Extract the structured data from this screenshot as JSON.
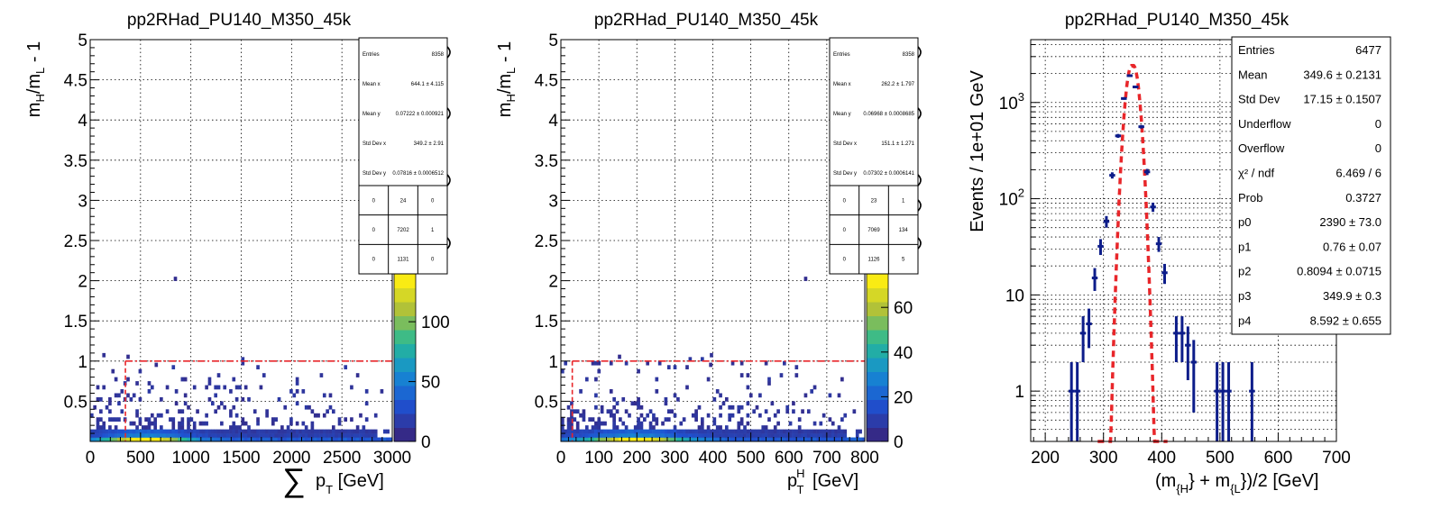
{
  "chart_data": [
    {
      "type": "heatmap",
      "title": "pp2RHad_PU140_M350_45k",
      "xlabel_prefix": "∑",
      "xlabel_main": "p",
      "xlabel_sub": "T",
      "xlabel_unit": " [GeV]",
      "ylabel_main": "m",
      "ylabel_sub1": "H",
      "ylabel_sep": "/m",
      "ylabel_sub2": "L",
      "ylabel_tail": " - 1",
      "xlim": [
        0,
        3000
      ],
      "ylim": [
        0,
        5
      ],
      "xticks": [
        "0",
        "500",
        "1000",
        "1500",
        "2000",
        "2500",
        "3000"
      ],
      "yticks": [
        "0.5",
        "1",
        "1.5",
        "2",
        "2.5",
        "3",
        "3.5",
        "4",
        "4.5",
        "5"
      ],
      "zticks": [
        "0",
        "50",
        "100"
      ],
      "zmax": 140,
      "grid": true,
      "cut_x": 350,
      "cut_y": 1,
      "stats": [
        {
          "label": "Entries",
          "value": "8358"
        },
        {
          "label": "Mean x",
          "value": "644.1 ± 4.115"
        },
        {
          "label": "Mean y",
          "value": "0.07222 ± 0.000921"
        },
        {
          "label": "Std Dev x",
          "value": "349.2 ± 2.91"
        },
        {
          "label": "Std Dev y",
          "value": "0.07816 ± 0.0006512"
        }
      ],
      "quadrants": [
        [
          "0",
          "24",
          "0"
        ],
        [
          "0",
          "7202",
          "1"
        ],
        [
          "0",
          "1131",
          "0"
        ]
      ]
    },
    {
      "type": "heatmap",
      "title": "pp2RHad_PU140_M350_45k",
      "xlabel_prefix": "",
      "xlabel_main": "p",
      "xlabel_sub": "T",
      "xlabel_sup": "H",
      "xlabel_unit": " [GeV]",
      "ylabel_main": "m",
      "ylabel_sub1": "H",
      "ylabel_sep": "/m",
      "ylabel_sub2": "L",
      "ylabel_tail": " - 1",
      "xlim": [
        0,
        800
      ],
      "ylim": [
        0,
        5
      ],
      "xticks": [
        "0",
        "100",
        "200",
        "300",
        "400",
        "500",
        "600",
        "700",
        "800"
      ],
      "yticks": [
        "0.5",
        "1",
        "1.5",
        "2",
        "2.5",
        "3",
        "3.5",
        "4",
        "4.5",
        "5"
      ],
      "zticks": [
        "0",
        "20",
        "40",
        "60"
      ],
      "zmax": 75,
      "grid": true,
      "cut_x": 30,
      "cut_y": 1,
      "stats": [
        {
          "label": "Entries",
          "value": "8358"
        },
        {
          "label": "Mean x",
          "value": "262.2 ± 1.797"
        },
        {
          "label": "Mean y",
          "value": "0.06968 ± 0.0008685"
        },
        {
          "label": "Std Dev x",
          "value": "151.1 ± 1.271"
        },
        {
          "label": "Std Dev y",
          "value": "0.07302 ± 0.0006141"
        }
      ],
      "quadrants": [
        [
          "0",
          "23",
          "1"
        ],
        [
          "0",
          "7069",
          "134"
        ],
        [
          "0",
          "1126",
          "5"
        ]
      ]
    },
    {
      "type": "scatter",
      "title": "pp2RHad_PU140_M350_45k",
      "xlabel": "(m_{H} + m_{L})/2 [GeV]",
      "xlabel_main": "(m",
      "xlabel_sub1": "{H",
      "xlabel_mid": "} + m",
      "xlabel_sub2": "{L",
      "xlabel_tail": "})/2 [GeV]",
      "ylabel": "Events / 1e+01 GeV",
      "xlim": [
        175,
        700
      ],
      "ylim": [
        0.3,
        4500
      ],
      "yscale": "log",
      "xticks": [
        "200",
        "300",
        "400",
        "500",
        "600",
        "700"
      ],
      "ytick_main": [
        "1",
        "10",
        "10",
        "10"
      ],
      "ytick_exp": [
        "",
        "",
        "2",
        "3"
      ],
      "ytick_vals": [
        1,
        10,
        100,
        1000
      ],
      "grid": true,
      "points": [
        {
          "x": 245,
          "y": 1,
          "lo": 0.3,
          "hi": 2
        },
        {
          "x": 255,
          "y": 1,
          "lo": 0.3,
          "hi": 2
        },
        {
          "x": 265,
          "y": 4,
          "lo": 2,
          "hi": 6
        },
        {
          "x": 275,
          "y": 5,
          "lo": 2.8,
          "hi": 7.2
        },
        {
          "x": 285,
          "y": 15,
          "lo": 11,
          "hi": 19
        },
        {
          "x": 295,
          "y": 32,
          "lo": 26,
          "hi": 38
        },
        {
          "x": 305,
          "y": 58,
          "lo": 50,
          "hi": 66
        },
        {
          "x": 315,
          "y": 175,
          "lo": 162,
          "hi": 188
        },
        {
          "x": 325,
          "y": 450,
          "lo": 429,
          "hi": 471
        },
        {
          "x": 335,
          "y": 1100,
          "lo": 1067,
          "hi": 1133
        },
        {
          "x": 345,
          "y": 1900,
          "lo": 1856,
          "hi": 1944
        },
        {
          "x": 355,
          "y": 1450,
          "lo": 1412,
          "hi": 1488
        },
        {
          "x": 365,
          "y": 560,
          "lo": 536,
          "hi": 584
        },
        {
          "x": 375,
          "y": 190,
          "lo": 176,
          "hi": 204
        },
        {
          "x": 385,
          "y": 82,
          "lo": 73,
          "hi": 91
        },
        {
          "x": 395,
          "y": 34,
          "lo": 28,
          "hi": 40
        },
        {
          "x": 405,
          "y": 17,
          "lo": 13,
          "hi": 21
        },
        {
          "x": 425,
          "y": 4,
          "lo": 2,
          "hi": 6
        },
        {
          "x": 435,
          "y": 4,
          "lo": 2,
          "hi": 6
        },
        {
          "x": 445,
          "y": 3,
          "lo": 1.3,
          "hi": 4.7
        },
        {
          "x": 455,
          "y": 2,
          "lo": 0.6,
          "hi": 3.4
        },
        {
          "x": 495,
          "y": 1,
          "lo": 0.3,
          "hi": 2
        },
        {
          "x": 505,
          "y": 1,
          "lo": 0.3,
          "hi": 2
        },
        {
          "x": 515,
          "y": 1,
          "lo": 0.3,
          "hi": 2
        },
        {
          "x": 555,
          "y": 1,
          "lo": 0.3,
          "hi": 2
        }
      ],
      "fit": {
        "p0": 2390,
        "p1": 0.76,
        "p2": 0.8094,
        "p3": 349.9,
        "p4": 8.592,
        "xrange": [
          290,
          410
        ]
      },
      "stats": [
        {
          "label": "Entries",
          "value": "6477"
        },
        {
          "label": "Mean",
          "value": "349.6 ± 0.2131"
        },
        {
          "label": "Std Dev",
          "value": "17.15 ± 0.1507"
        },
        {
          "label": "Underflow",
          "value": "0"
        },
        {
          "label": "Overflow",
          "value": "0"
        },
        {
          "label": "χ² / ndf",
          "value": "6.469 / 6"
        },
        {
          "label": "Prob",
          "value": "0.3727"
        },
        {
          "label": "p0",
          "value": "2390 ± 73.0"
        },
        {
          "label": "p1",
          "value": "0.76 ± 0.07"
        },
        {
          "label": "p2",
          "value": "0.8094 ± 0.0715"
        },
        {
          "label": "p3",
          "value": "349.9 ± 0.3"
        },
        {
          "label": "p4",
          "value": "8.592 ± 0.655"
        }
      ]
    }
  ]
}
